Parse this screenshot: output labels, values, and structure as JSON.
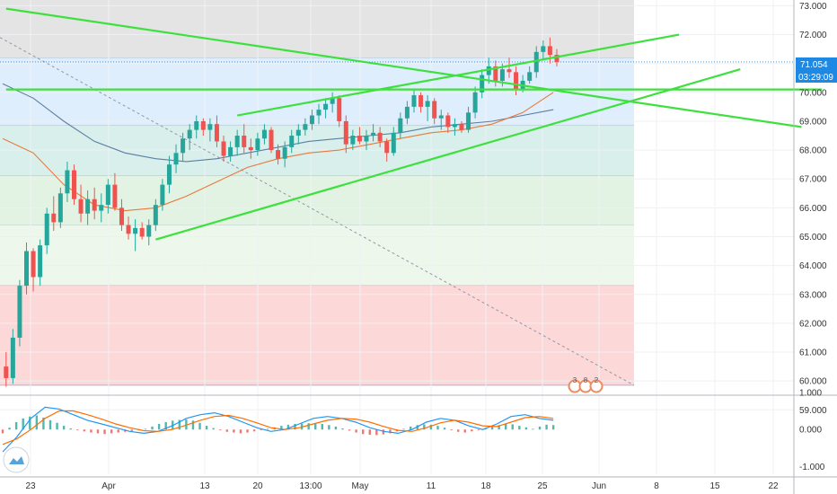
{
  "chart_data": [
    {
      "type": "candlestick",
      "title": "",
      "ylim": [
        59.6,
        73.2
      ],
      "x_ticks": [
        "23",
        "Apr",
        "13",
        "20",
        "13:00",
        "May",
        "11",
        "18",
        "25",
        "Jun",
        "8",
        "15",
        "22"
      ],
      "y_ticks": [
        "73.000",
        "72.000",
        "71.000",
        "70.000",
        "69.000",
        "68.000",
        "67.000",
        "66.000",
        "65.000",
        "64.000",
        "63.000",
        "62.000",
        "61.000",
        "60.000",
        "59.000"
      ],
      "last_price": "71.054",
      "countdown": "03:29:09",
      "candles": [
        [
          60.5,
          61.0,
          59.8,
          60.1
        ],
        [
          60.1,
          61.8,
          59.9,
          61.5
        ],
        [
          61.5,
          63.5,
          61.2,
          63.3
        ],
        [
          63.3,
          64.8,
          63.0,
          64.5
        ],
        [
          64.5,
          64.6,
          63.1,
          63.6
        ],
        [
          63.6,
          64.9,
          63.3,
          64.7
        ],
        [
          64.7,
          66.0,
          64.4,
          65.8
        ],
        [
          65.8,
          66.4,
          65.2,
          65.5
        ],
        [
          65.5,
          66.7,
          65.3,
          66.5
        ],
        [
          66.5,
          67.6,
          66.2,
          67.3
        ],
        [
          67.3,
          67.5,
          66.1,
          66.3
        ],
        [
          66.3,
          66.8,
          65.5,
          65.8
        ],
        [
          65.8,
          66.6,
          65.4,
          66.3
        ],
        [
          66.3,
          66.7,
          65.6,
          65.9
        ],
        [
          65.9,
          66.5,
          65.5,
          66.1
        ],
        [
          66.1,
          67.0,
          65.8,
          66.8
        ],
        [
          66.8,
          67.2,
          65.9,
          66.0
        ],
        [
          66.0,
          66.3,
          65.2,
          65.4
        ],
        [
          65.4,
          65.7,
          64.9,
          65.1
        ],
        [
          65.1,
          65.6,
          64.5,
          65.3
        ],
        [
          65.3,
          65.5,
          64.9,
          65.0
        ],
        [
          65.0,
          65.6,
          64.7,
          65.4
        ],
        [
          65.4,
          66.3,
          65.2,
          66.1
        ],
        [
          66.1,
          67.0,
          65.9,
          66.8
        ],
        [
          66.8,
          67.8,
          66.5,
          67.5
        ],
        [
          67.5,
          68.2,
          67.2,
          67.9
        ],
        [
          67.9,
          68.6,
          67.6,
          68.4
        ],
        [
          68.4,
          68.9,
          68.0,
          68.7
        ],
        [
          68.7,
          69.2,
          68.4,
          69.0
        ],
        [
          69.0,
          69.1,
          68.5,
          68.7
        ],
        [
          68.7,
          69.1,
          68.3,
          68.9
        ],
        [
          68.9,
          69.2,
          68.1,
          68.3
        ],
        [
          68.3,
          68.5,
          67.6,
          67.8
        ],
        [
          67.8,
          68.3,
          67.6,
          68.1
        ],
        [
          68.1,
          68.7,
          67.8,
          68.5
        ],
        [
          68.5,
          68.9,
          67.9,
          68.1
        ],
        [
          68.1,
          68.4,
          67.7,
          68.0
        ],
        [
          68.0,
          68.6,
          67.8,
          68.4
        ],
        [
          68.4,
          68.9,
          68.2,
          68.7
        ],
        [
          68.7,
          68.8,
          67.9,
          68.0
        ],
        [
          68.0,
          68.2,
          67.5,
          67.7
        ],
        [
          67.7,
          68.3,
          67.4,
          68.1
        ],
        [
          68.1,
          68.7,
          67.9,
          68.5
        ],
        [
          68.5,
          68.9,
          68.2,
          68.7
        ],
        [
          68.7,
          69.1,
          68.5,
          68.9
        ],
        [
          68.9,
          69.4,
          68.7,
          69.2
        ],
        [
          69.2,
          69.6,
          68.9,
          69.4
        ],
        [
          69.4,
          69.8,
          69.1,
          69.6
        ],
        [
          69.6,
          70.0,
          69.3,
          69.8
        ],
        [
          69.8,
          69.9,
          68.8,
          69.0
        ],
        [
          69.0,
          69.2,
          67.9,
          68.2
        ],
        [
          68.2,
          68.7,
          68.0,
          68.5
        ],
        [
          68.5,
          68.8,
          68.2,
          68.3
        ],
        [
          68.3,
          68.7,
          68.0,
          68.5
        ],
        [
          68.5,
          68.9,
          68.3,
          68.6
        ],
        [
          68.6,
          68.8,
          68.1,
          68.3
        ],
        [
          68.3,
          68.4,
          67.6,
          67.9
        ],
        [
          67.9,
          68.8,
          67.8,
          68.6
        ],
        [
          68.6,
          69.3,
          68.4,
          69.1
        ],
        [
          69.1,
          69.7,
          68.9,
          69.5
        ],
        [
          69.5,
          70.1,
          69.3,
          69.9
        ],
        [
          69.9,
          70.0,
          69.3,
          69.5
        ],
        [
          69.5,
          69.9,
          69.0,
          69.7
        ],
        [
          69.7,
          69.8,
          68.9,
          69.1
        ],
        [
          69.1,
          69.4,
          68.7,
          69.2
        ],
        [
          69.2,
          69.3,
          68.6,
          68.8
        ],
        [
          68.8,
          69.1,
          68.5,
          68.9
        ],
        [
          68.9,
          69.0,
          68.6,
          68.7
        ],
        [
          68.7,
          69.5,
          68.6,
          69.3
        ],
        [
          69.3,
          70.2,
          69.1,
          70.0
        ],
        [
          70.0,
          70.8,
          69.8,
          70.6
        ],
        [
          70.6,
          71.2,
          70.3,
          70.9
        ],
        [
          70.9,
          71.1,
          70.2,
          70.4
        ],
        [
          70.4,
          71.0,
          70.2,
          70.8
        ],
        [
          70.8,
          71.2,
          70.5,
          70.7
        ],
        [
          70.7,
          70.9,
          69.9,
          70.1
        ],
        [
          70.1,
          70.6,
          70.0,
          70.4
        ],
        [
          70.4,
          70.9,
          70.3,
          70.7
        ],
        [
          70.7,
          71.6,
          70.5,
          71.4
        ],
        [
          71.4,
          71.8,
          71.1,
          71.6
        ],
        [
          71.6,
          71.9,
          71.0,
          71.3
        ],
        [
          71.3,
          71.5,
          70.9,
          71.05
        ]
      ],
      "moving_averages": [
        {
          "color": "#5b7fa3",
          "values": [
            70.3,
            69.8,
            69.0,
            68.3,
            67.9,
            67.7,
            67.6,
            67.7,
            67.9,
            68.1,
            68.3,
            68.4,
            68.5,
            68.6,
            68.8,
            68.9,
            69.0,
            69.2,
            69.4
          ]
        },
        {
          "color": "#e8793a",
          "values": [
            68.4,
            67.9,
            66.8,
            66.1,
            65.9,
            66.0,
            66.4,
            66.9,
            67.4,
            67.7,
            67.9,
            68.0,
            68.2,
            68.4,
            68.6,
            68.7,
            68.9,
            69.3,
            70.0
          ]
        }
      ],
      "trendlines": [
        {
          "color": "#3ee03e",
          "from": [
            0,
            72.9
          ],
          "to": [
            117,
            68.8
          ]
        },
        {
          "color": "#3ee03e",
          "from": [
            0,
            70.1
          ],
          "to": [
            120,
            70.1
          ]
        },
        {
          "color": "#3ee03e",
          "from": [
            34,
            69.2
          ],
          "to": [
            99,
            72.0
          ]
        },
        {
          "color": "#3ee03e",
          "from": [
            22,
            64.9
          ],
          "to": [
            108,
            70.8
          ]
        }
      ],
      "price_zones": [
        {
          "from": 71.2,
          "to": 73.2,
          "color": "#e4e4e4"
        },
        {
          "from": 68.85,
          "to": 71.2,
          "color": "#dfeefc"
        },
        {
          "from": 67.1,
          "to": 68.85,
          "color": "#d9efeb"
        },
        {
          "from": 65.4,
          "to": 67.1,
          "color": "#e2f3e3"
        },
        {
          "from": 63.3,
          "to": 65.4,
          "color": "#edf7ec"
        },
        {
          "from": 59.85,
          "to": 63.3,
          "color": "#fdd8d8"
        }
      ],
      "events": [
        "3",
        "8",
        "2"
      ]
    },
    {
      "type": "macd",
      "ylim": [
        -1.2,
        0.85
      ],
      "y_ticks": [
        "1.000",
        "0.000",
        "-1.000"
      ],
      "histogram": [
        -0.1,
        0.05,
        0.2,
        0.3,
        0.35,
        0.38,
        0.32,
        0.25,
        0.18,
        0.1,
        0.03,
        -0.02,
        -0.05,
        -0.08,
        -0.1,
        -0.12,
        -0.1,
        -0.08,
        -0.06,
        -0.04,
        -0.02,
        0.02,
        0.08,
        0.15,
        0.2,
        0.24,
        0.26,
        0.27,
        0.24,
        0.18,
        0.1,
        0.04,
        -0.02,
        -0.06,
        -0.08,
        -0.1,
        -0.08,
        -0.05,
        -0.02,
        0.02,
        0.06,
        0.1,
        0.13,
        0.15,
        0.16,
        0.17,
        0.16,
        0.15,
        0.12,
        0.08,
        0.03,
        -0.03,
        -0.08,
        -0.12,
        -0.14,
        -0.15,
        -0.13,
        -0.1,
        -0.05,
        0.02,
        0.08,
        0.12,
        0.14,
        0.13,
        0.1,
        0.05,
        -0.02,
        -0.06,
        -0.08,
        -0.05,
        -0.02,
        0.03,
        0.08,
        0.12,
        0.15,
        0.14,
        0.1,
        0.06,
        0.02,
        0.08,
        0.13,
        0.12
      ],
      "macd_line": [
        -0.6,
        -0.2,
        0.3,
        0.6,
        0.55,
        0.4,
        0.25,
        0.15,
        0.05,
        -0.05,
        -0.1,
        -0.05,
        0.1,
        0.3,
        0.4,
        0.45,
        0.35,
        0.2,
        0.05,
        -0.05,
        0.0,
        0.15,
        0.3,
        0.35,
        0.3,
        0.2,
        0.05,
        -0.05,
        -0.1,
        0.0,
        0.2,
        0.3,
        0.25,
        0.1,
        0.0,
        0.15,
        0.35,
        0.4,
        0.3,
        0.25
      ],
      "signal_line": [
        -0.4,
        -0.25,
        0.0,
        0.3,
        0.5,
        0.5,
        0.4,
        0.28,
        0.15,
        0.05,
        -0.03,
        -0.05,
        0.0,
        0.12,
        0.25,
        0.35,
        0.38,
        0.3,
        0.18,
        0.05,
        0.0,
        0.05,
        0.15,
        0.25,
        0.3,
        0.28,
        0.2,
        0.08,
        -0.02,
        -0.05,
        0.05,
        0.18,
        0.25,
        0.2,
        0.1,
        0.08,
        0.2,
        0.32,
        0.35,
        0.3
      ]
    }
  ]
}
